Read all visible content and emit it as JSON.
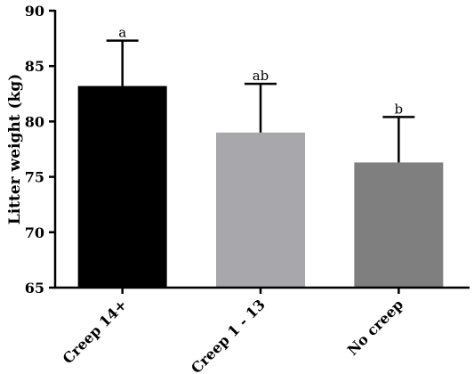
{
  "chart_data": {
    "type": "bar",
    "title": "",
    "xlabel": "",
    "ylabel": "Litter weight (kg)",
    "ylim": [
      65,
      90
    ],
    "yticks": [
      65,
      70,
      75,
      80,
      85,
      90
    ],
    "categories": [
      "Creep 14+",
      "Creep 1 - 13",
      "No creep"
    ],
    "values": [
      83.2,
      79.0,
      76.3
    ],
    "error_upper": [
      87.3,
      83.4,
      80.4
    ],
    "significance_labels": [
      "a",
      "ab",
      "b"
    ],
    "colors": [
      "#000000",
      "#a8a7ac",
      "#7f7f7f"
    ],
    "grid": false,
    "legend": "none"
  }
}
